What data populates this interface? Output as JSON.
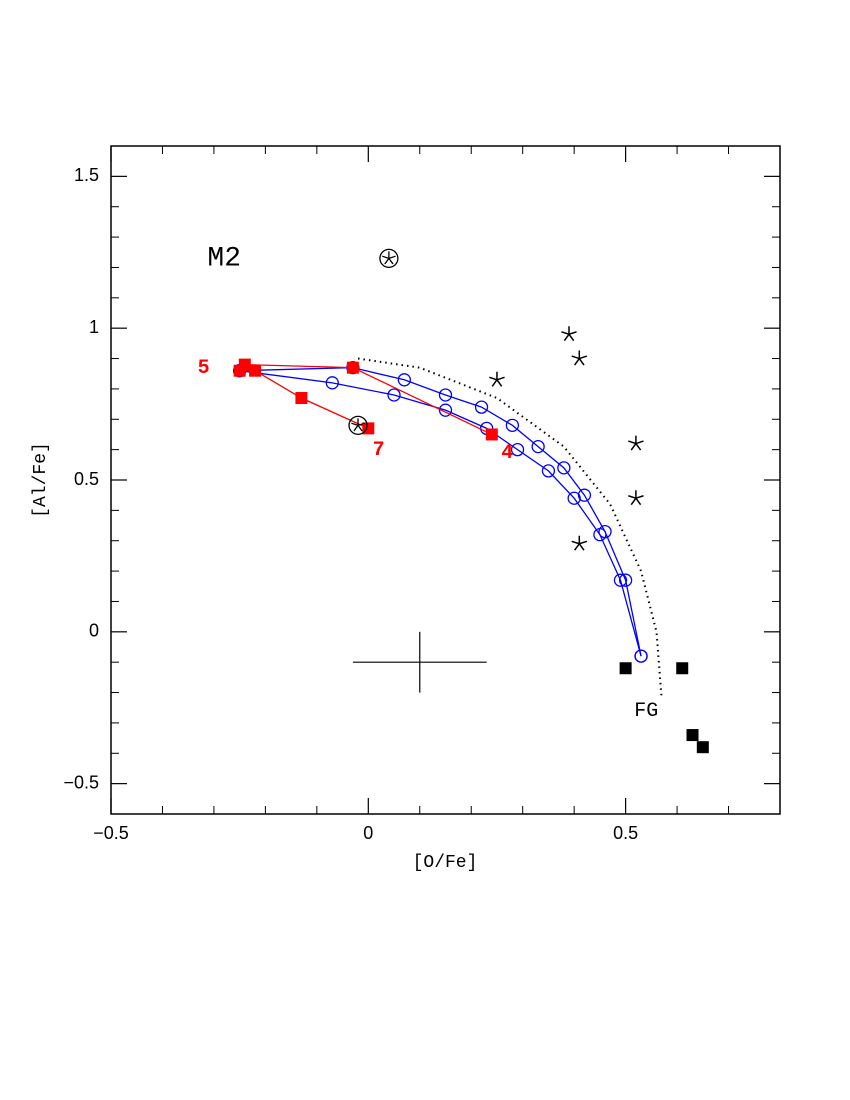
{
  "chart_data": {
    "type": "scatter",
    "xlabel": "[O/Fe]",
    "ylabel": "[Al/Fe]",
    "xlim": [
      -0.5,
      0.8
    ],
    "ylim": [
      -0.6,
      1.6
    ],
    "xticks": [
      {
        "value": -0.5,
        "label": "−0.5"
      },
      0,
      0.5
    ],
    "yticks": [
      {
        "value": -0.5,
        "label": "−0.5"
      },
      0,
      0.5,
      1,
      1.5
    ],
    "xminorticks": [
      -0.4,
      -0.3,
      -0.2,
      -0.1,
      0.1,
      0.2,
      0.3,
      0.4,
      0.6,
      0.7
    ],
    "yminorticks": [
      -0.4,
      -0.3,
      -0.2,
      -0.1,
      0.1,
      0.2,
      0.3,
      0.4,
      0.6,
      0.7,
      0.8,
      0.9,
      1.1,
      1.2,
      1.3,
      1.4
    ],
    "series": [
      {
        "marker": "none",
        "line": "dotted",
        "color": "#000000",
        "x": [
          -0.02,
          0.1,
          0.25,
          0.38,
          0.47,
          0.53,
          0.56,
          0.57
        ],
        "y": [
          0.9,
          0.87,
          0.77,
          0.61,
          0.42,
          0.2,
          0.0,
          -0.22
        ]
      },
      {
        "marker": "open-circle",
        "line": "solid",
        "color": "#0000ff",
        "x": [
          0.53,
          0.5,
          0.46,
          0.42,
          0.38,
          0.33,
          0.28,
          0.22,
          0.15,
          0.07,
          -0.03,
          -0.25
        ],
        "y": [
          -0.08,
          0.17,
          0.33,
          0.45,
          0.54,
          0.61,
          0.68,
          0.74,
          0.78,
          0.83,
          0.87,
          0.86
        ]
      },
      {
        "marker": "open-circle",
        "line": "solid",
        "color": "#0000ff",
        "x": [
          0.53,
          0.49,
          0.45,
          0.4,
          0.35,
          0.29,
          0.23,
          0.15,
          0.05,
          -0.07,
          -0.25
        ],
        "y": [
          -0.08,
          0.17,
          0.32,
          0.44,
          0.53,
          0.6,
          0.67,
          0.73,
          0.78,
          0.82,
          0.86
        ]
      },
      {
        "marker": "square",
        "line": "solid",
        "color": "#ff0000",
        "x": [
          0.24,
          -0.03,
          -0.24,
          -0.25,
          -0.22,
          -0.13,
          0.0
        ],
        "y": [
          0.65,
          0.87,
          0.88,
          0.86,
          0.86,
          0.77,
          0.67
        ]
      },
      {
        "marker": "star",
        "line": "none",
        "color": "#000000",
        "x": [
          0.25,
          0.39,
          0.41,
          0.52,
          0.52,
          0.41
        ],
        "y": [
          0.83,
          0.98,
          0.9,
          0.62,
          0.44,
          0.29
        ]
      },
      {
        "marker": "circled-star",
        "line": "none",
        "color": "#000000",
        "x": [
          0.04,
          -0.02
        ],
        "y": [
          1.23,
          0.68
        ]
      },
      {
        "marker": "square",
        "line": "none",
        "color": "#000000",
        "x": [
          0.5,
          0.61,
          0.63,
          0.65
        ],
        "y": [
          -0.12,
          -0.12,
          -0.34,
          -0.38
        ]
      }
    ],
    "error_bar": {
      "x": 0.1,
      "y": -0.1,
      "xerr": 0.13,
      "yerr": 0.1,
      "color": "#000000"
    },
    "annotations": [
      {
        "text": "M2",
        "x": -0.28,
        "y": 1.23,
        "color": "#000000",
        "size": "large"
      },
      {
        "text": "FG",
        "x": 0.54,
        "y": -0.26,
        "color": "#000000",
        "size": "medium"
      },
      {
        "text": "5",
        "x": -0.32,
        "y": 0.87,
        "color": "#ff0000",
        "size": "medium"
      },
      {
        "text": "7",
        "x": 0.02,
        "y": 0.6,
        "color": "#ff0000",
        "size": "medium"
      },
      {
        "text": "4",
        "x": 0.27,
        "y": 0.59,
        "color": "#ff0000",
        "size": "medium"
      }
    ]
  }
}
